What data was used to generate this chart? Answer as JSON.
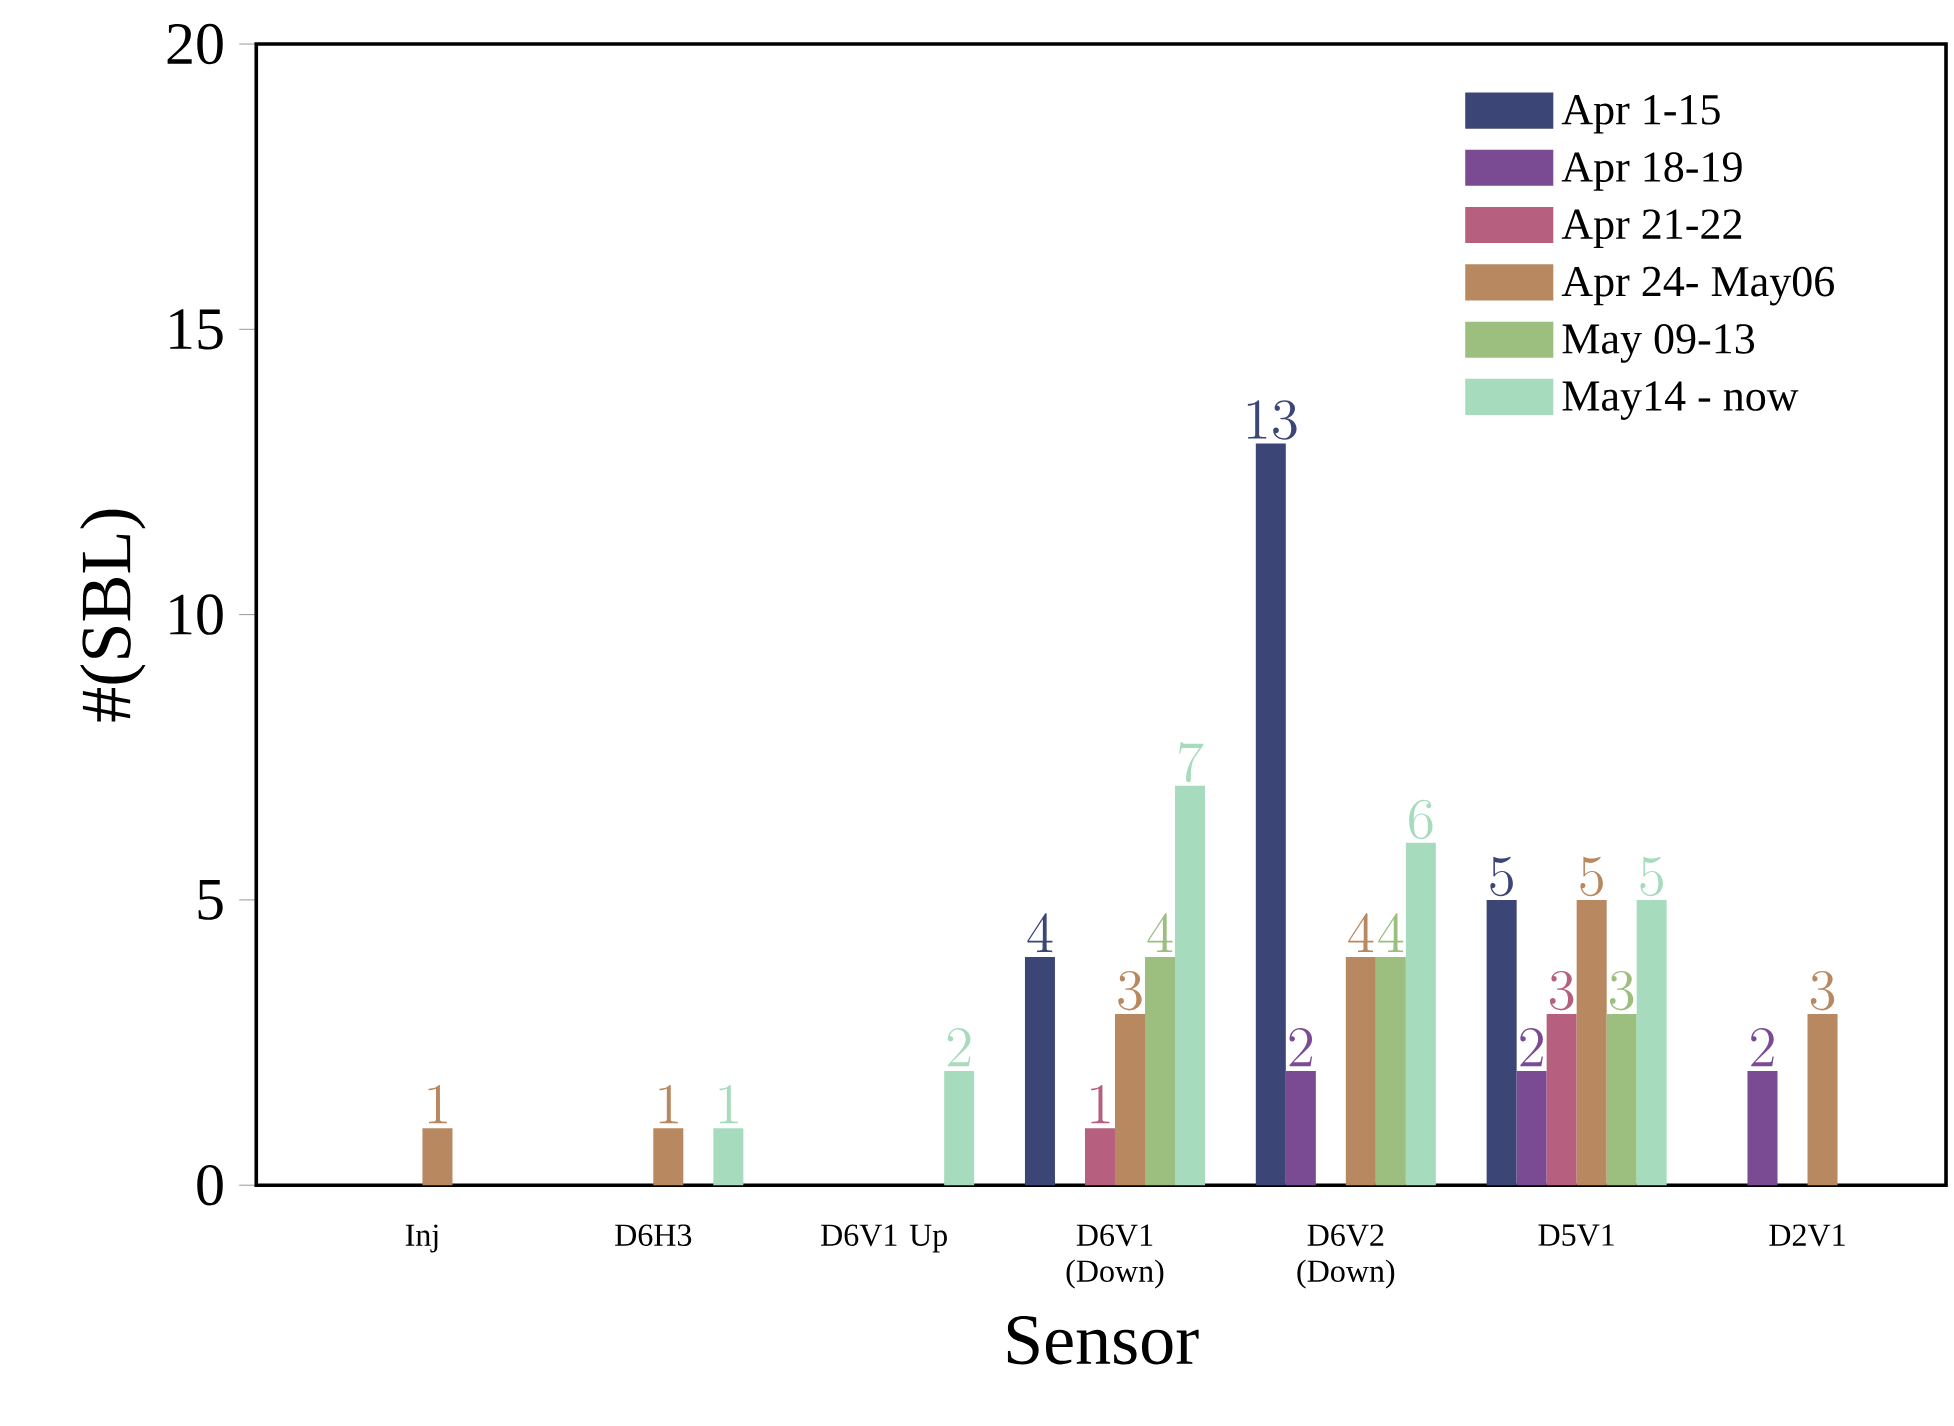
{
  "chart_data": {
    "type": "bar",
    "xlabel": "Sensor",
    "ylabel": "#(SBL)",
    "categories": [
      "Inj",
      "D6H3",
      "D6V1 Up",
      "D6V1 (Down)",
      "D6V2 (Down)",
      "D5V1",
      "D2V1"
    ],
    "series": [
      {
        "name": "Apr 1-15",
        "color": "#3b4677",
        "values": [
          null,
          null,
          null,
          4,
          13,
          5,
          null
        ]
      },
      {
        "name": "Apr 18-19",
        "color": "#7a4b93",
        "values": [
          null,
          null,
          null,
          null,
          2,
          2,
          2
        ]
      },
      {
        "name": "Apr 21-22",
        "color": "#b65f7f",
        "values": [
          null,
          null,
          null,
          1,
          null,
          3,
          null
        ]
      },
      {
        "name": "Apr 24- May06",
        "color": "#b88860",
        "values": [
          1,
          1,
          null,
          3,
          4,
          5,
          3
        ]
      },
      {
        "name": "May 09-13",
        "color": "#9cbf7f",
        "values": [
          null,
          null,
          null,
          4,
          4,
          3,
          null
        ]
      },
      {
        "name": "May14 - now",
        "color": "#a6dcbd",
        "values": [
          null,
          1,
          2,
          7,
          6,
          5,
          null
        ]
      }
    ],
    "ylim": [
      0,
      20
    ],
    "yticks": [
      0,
      5,
      10,
      15,
      20
    ],
    "grid": false,
    "legend": "top right",
    "data_labels": true
  }
}
